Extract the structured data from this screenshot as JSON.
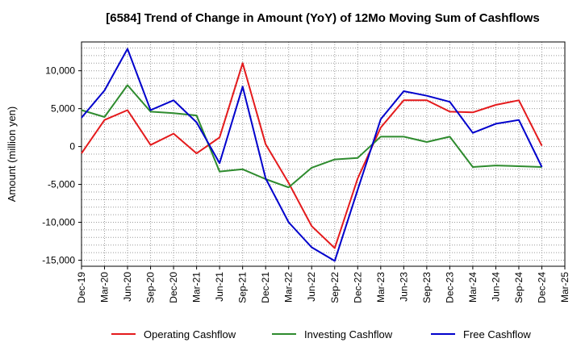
{
  "chart_data": {
    "type": "line",
    "title": "[6584]  Trend of Change in Amount (YoY) of 12Mo Moving Sum of Cashflows",
    "xlabel": "",
    "ylabel": "Amount (million yen)",
    "ylim": [
      -15800,
      13800
    ],
    "yticks": [
      10000,
      5000,
      0,
      -5000,
      -10000,
      -15000
    ],
    "ytick_labels": [
      "10,000",
      "5,000",
      "0",
      "-5,000",
      "-10,000",
      "-15,000"
    ],
    "grid": true,
    "legend_position": "bottom",
    "categories": [
      "Dec-19",
      "Mar-20",
      "Jun-20",
      "Sep-20",
      "Dec-20",
      "Mar-21",
      "Jun-21",
      "Sep-21",
      "Dec-21",
      "Mar-22",
      "Jun-22",
      "Sep-22",
      "Dec-22",
      "Mar-23",
      "Jun-23",
      "Sep-23",
      "Dec-23",
      "Mar-24",
      "Jun-24",
      "Sep-24",
      "Dec-24",
      "Mar-25"
    ],
    "series": [
      {
        "name": "Operating Cashflow",
        "color": "#e41a1c",
        "values": [
          -900,
          3500,
          4800,
          200,
          1700,
          -900,
          1200,
          11000,
          300,
          -4800,
          -10500,
          -13400,
          -4200,
          2500,
          6100,
          6100,
          4600,
          4500,
          5500,
          6100,
          100,
          null
        ]
      },
      {
        "name": "Investing Cashflow",
        "color": "#2e8b2e",
        "values": [
          4800,
          3900,
          8100,
          4600,
          4400,
          4100,
          -3300,
          -3000,
          -4300,
          -5400,
          -2800,
          -1700,
          -1500,
          1300,
          1300,
          600,
          1300,
          -2700,
          -2500,
          -2600,
          -2700,
          null
        ]
      },
      {
        "name": "Free Cashflow",
        "color": "#0000cc",
        "values": [
          3800,
          7400,
          12900,
          4800,
          6100,
          3200,
          -2200,
          7900,
          -4200,
          -10000,
          -13300,
          -15100,
          -5700,
          3600,
          7300,
          6700,
          5900,
          1800,
          3000,
          3500,
          -2700,
          null
        ]
      }
    ]
  }
}
